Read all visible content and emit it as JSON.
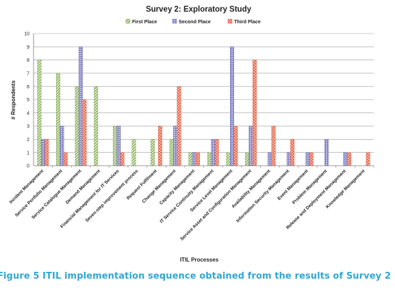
{
  "chart_data": {
    "type": "bar",
    "title": "Survey 2: Exploratory Study",
    "xlabel": "ITIL Processes",
    "ylabel": "# Respondents",
    "ylim": [
      0,
      10
    ],
    "yticks": [
      0,
      1,
      2,
      3,
      4,
      5,
      6,
      7,
      8,
      9,
      10
    ],
    "grid": true,
    "legend_position": "top",
    "categories": [
      "Incident Management",
      "Service Portfolio Management",
      "Service Catalogue Management",
      "Demand Management",
      "Financial Management for IT Services",
      "Seven-step improvement process",
      "Request Fulfilment",
      "Change Management",
      "Capacity Management",
      "IT Service Continuity Management",
      "Service Level Management",
      "Service Asset and Configuration Management",
      "Availability Management",
      "Information Security Management",
      "Event Management",
      "Problem Management",
      "Release and Deployment Management",
      "Knowledge Management"
    ],
    "series": [
      {
        "name": "First Place",
        "color": "#9bbb59",
        "values": [
          8,
          7,
          6,
          6,
          3,
          2,
          2,
          2,
          1,
          1,
          1,
          1,
          0,
          0,
          0,
          0,
          0,
          0
        ]
      },
      {
        "name": "Second Place",
        "color": "#8c8cc8",
        "values": [
          2,
          3,
          9,
          0,
          3,
          0,
          0,
          3,
          1,
          2,
          9,
          3,
          1,
          1,
          1,
          2,
          1,
          0
        ]
      },
      {
        "name": "Third Place",
        "color": "#f2826a",
        "values": [
          2,
          1,
          5,
          0,
          1,
          0,
          3,
          6,
          1,
          2,
          3,
          8,
          3,
          2,
          1,
          0,
          1,
          1
        ]
      }
    ]
  },
  "caption": "Figure 5 ITIL implementation sequence obtained from the results of Survey 2"
}
